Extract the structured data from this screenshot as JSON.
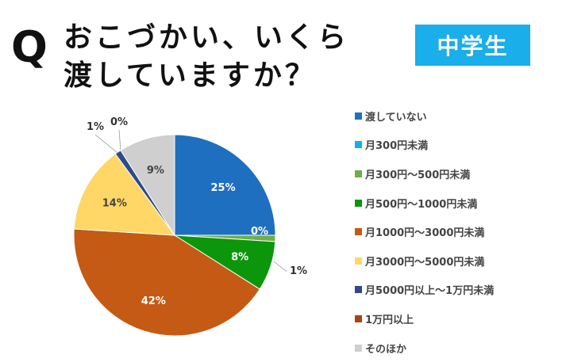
{
  "header": {
    "q": "Q",
    "line1": "おこづかい、いくら",
    "line2": "渡していますか？",
    "badge": "中学生"
  },
  "chart_data": {
    "type": "pie",
    "title": "おこづかい、いくら渡していますか？",
    "subtitle": "中学生",
    "categories": [
      "渡していない",
      "月300円未満",
      "月300円～500円未満",
      "月500円～1000円未満",
      "月1000円～3000円未満",
      "月3000円～5000円未満",
      "月5000円以上～1万円未満",
      "1万円以上",
      "そのほか"
    ],
    "values": [
      25,
      0,
      1,
      8,
      42,
      14,
      1,
      0,
      9
    ],
    "labels": [
      "25%",
      "0%",
      "1%",
      "8%",
      "42%",
      "14%",
      "1%",
      "0%",
      "9%"
    ],
    "colors": [
      "#1f6fc1",
      "#12b0ee",
      "#6fae4a",
      "#0c960c",
      "#c55a14",
      "#ffd766",
      "#2e4a8a",
      "#a5460f",
      "#cfcfcf"
    ],
    "legend_position": "right"
  }
}
